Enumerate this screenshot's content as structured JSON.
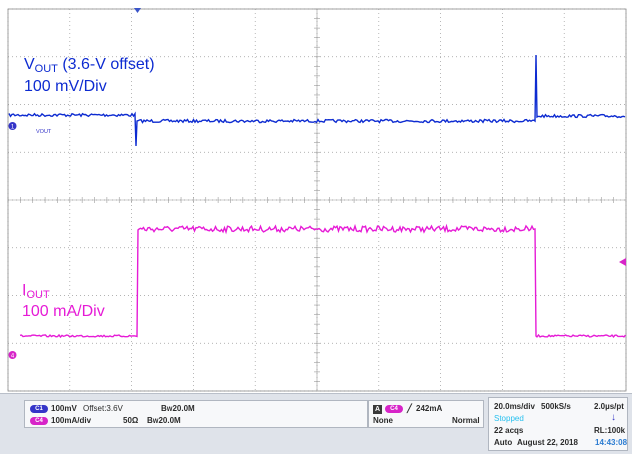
{
  "colors": {
    "vout": "#0d2bd1",
    "iout": "#e61bd6",
    "grid": "#9a9a9a",
    "pill_blue": "#3535c8",
    "pill_magenta": "#d724c8",
    "stopped": "#27c0ef",
    "timestamp": "#2a7bd1"
  },
  "annotations": {
    "vout_label_main": "V",
    "vout_label_sub": "OUT",
    "vout_label_rest": " (3.6-V offset)",
    "vout_scale": "100 mV/Div",
    "iout_label_main": "I",
    "iout_label_sub": "OUT",
    "iout_scale": "100 mA/Div"
  },
  "markers": {
    "ch1_tag": "VOUT",
    "ch1_number": "1",
    "ch4_number": "4"
  },
  "channels": {
    "ch1": {
      "pill": "C1",
      "scale": "100mV",
      "offset": "Offset:3.6V",
      "bw": "20.0M"
    },
    "ch4": {
      "pill": "C4",
      "scale": "100mA/div",
      "impedance": "50Ω",
      "bw": "20.0M"
    }
  },
  "trigger": {
    "source_box": "A",
    "pill": "C4",
    "level": "242mA",
    "coupling": "None",
    "mode": "Normal"
  },
  "acquisition": {
    "timebase": "20.0ms/div",
    "sample_rate": "500kS/s",
    "resolution": "2.0µs/pt",
    "state": "Stopped",
    "acqs": "22 acqs",
    "record_length": "RL:100k",
    "run_mode": "Auto",
    "date": "August 22, 2018",
    "time": "14:43:08"
  }
}
